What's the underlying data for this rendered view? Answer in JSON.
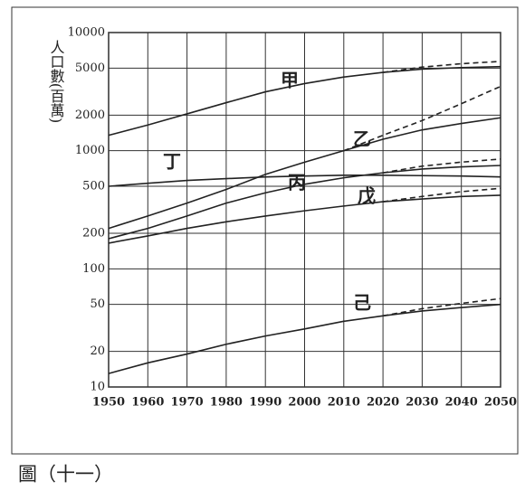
{
  "chart_data": {
    "type": "line",
    "ylabel": "人口數(百萬)",
    "caption": "圖（十一）",
    "log_y": true,
    "grid": true,
    "xlim": [
      1950,
      2050
    ],
    "xticks": [
      1950,
      1960,
      1970,
      1980,
      1990,
      2000,
      2010,
      2020,
      2030,
      2040,
      2050
    ],
    "ylim": [
      10,
      10000
    ],
    "yticks": [
      10,
      20,
      50,
      100,
      200,
      500,
      1000,
      2000,
      5000,
      10000
    ],
    "x": [
      1950,
      1960,
      1970,
      1980,
      1990,
      2000,
      2010,
      2020,
      2030,
      2040,
      2050
    ],
    "series": [
      {
        "name": "甲",
        "color": "#222",
        "values": [
          1350,
          1650,
          2050,
          2550,
          3150,
          3700,
          4200,
          4600,
          4900,
          5050,
          5150
        ],
        "high_values": [
          null,
          null,
          null,
          null,
          null,
          null,
          null,
          4600,
          5100,
          5450,
          5700
        ]
      },
      {
        "name": "乙",
        "color": "#222",
        "values": [
          220,
          280,
          360,
          470,
          630,
          800,
          1000,
          1250,
          1500,
          1700,
          1900
        ],
        "high_values": [
          null,
          null,
          null,
          null,
          null,
          null,
          1000,
          1350,
          1800,
          2500,
          3500
        ]
      },
      {
        "name": "丙",
        "color": "#222",
        "values": [
          180,
          220,
          280,
          360,
          440,
          520,
          590,
          650,
          700,
          730,
          750
        ],
        "high_values": [
          null,
          null,
          null,
          null,
          null,
          null,
          null,
          650,
          740,
          800,
          850
        ]
      },
      {
        "name": "丁",
        "color": "#222",
        "values": [
          500,
          530,
          560,
          580,
          600,
          610,
          620,
          620,
          615,
          610,
          600
        ],
        "high_values": [
          null,
          null,
          null,
          null,
          null,
          null,
          null,
          null,
          null,
          null,
          null
        ]
      },
      {
        "name": "戊",
        "color": "#222",
        "values": [
          165,
          190,
          220,
          250,
          280,
          310,
          340,
          370,
          390,
          410,
          420
        ],
        "high_values": [
          null,
          null,
          null,
          null,
          null,
          null,
          null,
          370,
          410,
          450,
          480
        ]
      },
      {
        "name": "己",
        "color": "#222",
        "values": [
          13,
          16,
          19,
          23,
          27,
          31,
          36,
          40,
          44,
          47,
          50
        ],
        "high_values": [
          null,
          null,
          null,
          null,
          null,
          null,
          null,
          40,
          46,
          51,
          56
        ]
      }
    ]
  }
}
